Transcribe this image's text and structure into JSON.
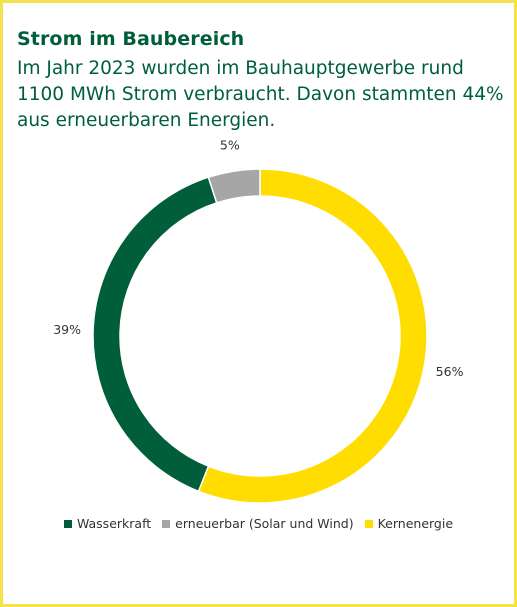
{
  "title": "Strom im Baubereich",
  "subtitle": "Im Jahr 2023 wurden im Bauhauptgewerbe rund 1100 MWh Strom verbraucht. Davon stammten 44% aus erneuerbaren Energien.",
  "chart_data": {
    "type": "pie",
    "variant": "donut",
    "legend_position": "bottom",
    "slices": [
      {
        "label": "Kernenergie",
        "value": 56,
        "display": "56%",
        "color": "#ffdd00"
      },
      {
        "label": "Wasserkraft",
        "value": 39,
        "display": "39%",
        "color": "#005f3a"
      },
      {
        "label": "erneuerbar (Solar und Wind)",
        "value": 5,
        "display": "5%",
        "color": "#a6a6a6"
      }
    ],
    "legend": [
      "Wasserkraft",
      "erneuerbar (Solar und Wind)",
      "Kernenergie"
    ]
  }
}
